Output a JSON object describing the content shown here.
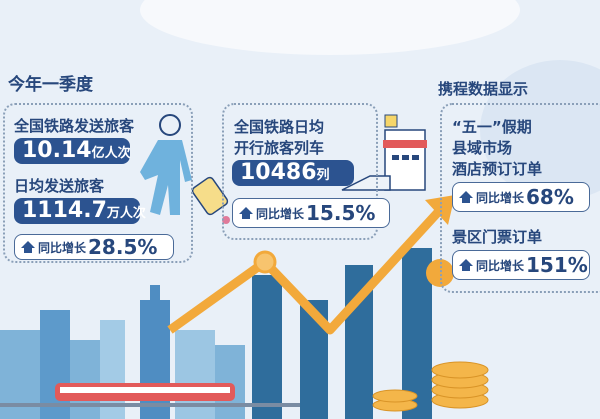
{
  "left": {
    "title": "今年一季度",
    "label1": "全国铁路发送旅客",
    "value1": "10.14",
    "unit1": "亿人次",
    "label2": "日均发送旅客",
    "value2": "1114.7",
    "unit2": "万人次",
    "growth_label": "同比增长",
    "growth": "28.5%"
  },
  "middle": {
    "label_line1": "全国铁路日均",
    "label_line2": "开行旅客列车",
    "value": "10486",
    "unit": "列",
    "growth_label": "同比增长",
    "growth": "15.5%"
  },
  "right": {
    "title": "携程数据显示",
    "label_line1": "“五一”假期",
    "label_line2": "县域市场",
    "label_line3": "酒店预订订单",
    "growth_label": "同比增长",
    "growth1": "68%",
    "label4": "景区门票订单",
    "growth2": "151%"
  },
  "colors": {
    "dark_blue": "#2c5390",
    "orange": "#f2a93b",
    "background": "#e9f0f8"
  }
}
